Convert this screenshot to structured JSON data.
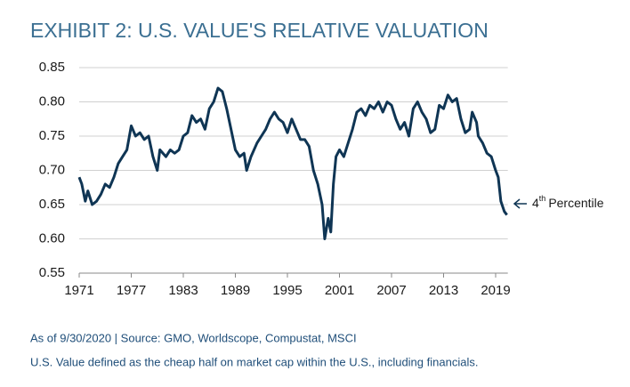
{
  "chart_data": {
    "type": "line",
    "title": "EXHIBIT 2: U.S. VALUE'S RELATIVE VALUATION",
    "source": "As of 9/30/2020 | Source: GMO, Worldscope, Compustat, MSCI",
    "note": "U.S. Value defined as the cheap half on market cap within the U.S., including financials.",
    "annotation": [
      "4",
      "th",
      "Percentile"
    ],
    "x": [
      1971.0,
      1971.3,
      1971.7,
      1972.0,
      1972.5,
      1973.0,
      1973.5,
      1974.0,
      1974.5,
      1975.0,
      1975.5,
      1976.0,
      1976.5,
      1977.0,
      1977.5,
      1978.0,
      1978.5,
      1979.0,
      1979.5,
      1980.0,
      1980.3,
      1981.0,
      1981.5,
      1982.0,
      1982.5,
      1983.0,
      1983.5,
      1984.0,
      1984.5,
      1985.0,
      1985.5,
      1986.0,
      1986.5,
      1987.0,
      1987.5,
      1988.0,
      1988.5,
      1989.0,
      1989.5,
      1990.0,
      1990.3,
      1990.8,
      1991.5,
      1992.0,
      1992.5,
      1993.0,
      1993.5,
      1994.0,
      1994.5,
      1995.0,
      1995.5,
      1996.0,
      1996.5,
      1997.0,
      1997.5,
      1998.0,
      1998.5,
      1999.0,
      1999.3,
      1999.7,
      2000.0,
      2000.3,
      2000.6,
      2001.0,
      2001.5,
      2002.0,
      2002.5,
      2003.0,
      2003.5,
      2004.0,
      2004.5,
      2005.0,
      2005.5,
      2006.0,
      2006.5,
      2007.0,
      2007.5,
      2008.0,
      2008.5,
      2009.0,
      2009.5,
      2010.0,
      2010.5,
      2011.0,
      2011.5,
      2012.0,
      2012.5,
      2013.0,
      2013.5,
      2014.0,
      2014.5,
      2015.0,
      2015.5,
      2016.0,
      2016.3,
      2016.8,
      2017.0,
      2017.5,
      2018.0,
      2018.5,
      2019.0,
      2019.3,
      2019.6,
      2020.0,
      2020.3
    ],
    "series": [
      {
        "name": "U.S. Value relative valuation",
        "color": "#0f3554",
        "values": [
          0.69,
          0.68,
          0.655,
          0.67,
          0.65,
          0.655,
          0.665,
          0.68,
          0.675,
          0.69,
          0.71,
          0.72,
          0.73,
          0.765,
          0.75,
          0.755,
          0.745,
          0.75,
          0.72,
          0.7,
          0.73,
          0.72,
          0.73,
          0.725,
          0.73,
          0.75,
          0.755,
          0.78,
          0.77,
          0.775,
          0.76,
          0.79,
          0.8,
          0.82,
          0.815,
          0.79,
          0.76,
          0.73,
          0.72,
          0.725,
          0.7,
          0.72,
          0.74,
          0.75,
          0.76,
          0.775,
          0.785,
          0.775,
          0.77,
          0.755,
          0.775,
          0.76,
          0.745,
          0.745,
          0.735,
          0.7,
          0.68,
          0.65,
          0.6,
          0.63,
          0.61,
          0.68,
          0.72,
          0.73,
          0.72,
          0.74,
          0.76,
          0.785,
          0.79,
          0.78,
          0.795,
          0.79,
          0.8,
          0.785,
          0.8,
          0.795,
          0.775,
          0.76,
          0.77,
          0.75,
          0.79,
          0.8,
          0.785,
          0.775,
          0.755,
          0.76,
          0.795,
          0.79,
          0.81,
          0.8,
          0.805,
          0.775,
          0.755,
          0.76,
          0.785,
          0.77,
          0.75,
          0.74,
          0.725,
          0.72,
          0.7,
          0.69,
          0.655,
          0.64,
          0.635
        ]
      }
    ],
    "xlim": [
      1971,
      2020.4
    ],
    "xticks": [
      1971,
      1977,
      1983,
      1989,
      1995,
      2001,
      2007,
      2013,
      2019
    ],
    "ylim": [
      0.55,
      0.85
    ],
    "yticks": [
      0.55,
      {
        "value": 0.6,
        "label": "0.60"
      },
      0.65,
      {
        "value": 0.7,
        "label": "0.70"
      },
      0.75,
      {
        "value": 0.8,
        "label": "0.80"
      },
      0.85
    ],
    "grid": true
  }
}
